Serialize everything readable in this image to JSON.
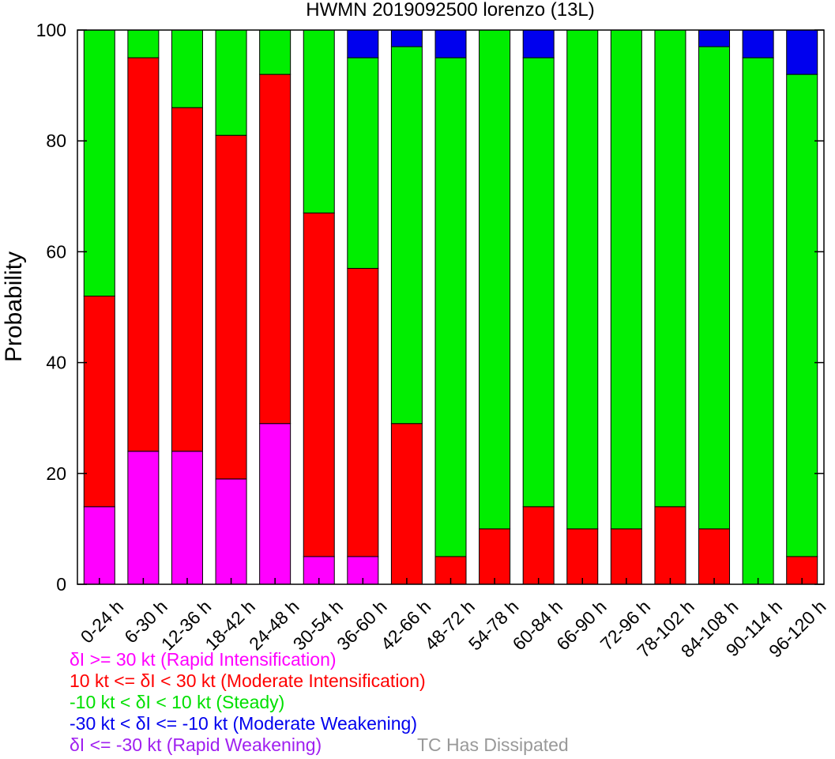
{
  "chart_data": {
    "type": "bar",
    "stacked": true,
    "title": "HWMN 2019092500 lorenzo (13L)",
    "xlabel": "",
    "ylabel": "Probability",
    "ylim": [
      0,
      100
    ],
    "yticks": [
      0,
      20,
      40,
      60,
      80,
      100
    ],
    "grid": false,
    "categories": [
      "0-24 h",
      "6-30 h",
      "12-36 h",
      "18-42 h",
      "24-48 h",
      "30-54 h",
      "36-60 h",
      "42-66 h",
      "48-72 h",
      "54-78 h",
      "60-84 h",
      "66-90 h",
      "72-96 h",
      "78-102 h",
      "84-108 h",
      "90-114 h",
      "96-120 h"
    ],
    "series": [
      {
        "name": "δI >= 30 kt (Rapid Intensification)",
        "color": "#ff00ff",
        "values": [
          14,
          24,
          24,
          19,
          29,
          5,
          5,
          0,
          0,
          0,
          0,
          0,
          0,
          0,
          0,
          0,
          0
        ]
      },
      {
        "name": "10 kt <= δI < 30 kt (Moderate Intensification)",
        "color": "#ff0000",
        "values": [
          38,
          71,
          62,
          62,
          63,
          62,
          52,
          29,
          5,
          10,
          14,
          10,
          10,
          14,
          10,
          0,
          5
        ]
      },
      {
        "name": "-10 kt < δI < 10 kt (Steady)",
        "color": "#00ee00",
        "values": [
          48,
          5,
          14,
          19,
          8,
          33,
          38,
          68,
          90,
          90,
          81,
          90,
          90,
          86,
          87,
          95,
          87
        ]
      },
      {
        "name": "-30 kt < δI <= -10 kt (Moderate Weakening)",
        "color": "#0000ee",
        "values": [
          0,
          0,
          0,
          0,
          0,
          0,
          5,
          3,
          5,
          0,
          5,
          0,
          0,
          0,
          3,
          5,
          8
        ]
      },
      {
        "name": "δI <= -30 kt (Rapid Weakening)",
        "color": "#a020f0",
        "values": [
          0,
          0,
          0,
          0,
          0,
          0,
          0,
          0,
          0,
          0,
          0,
          0,
          0,
          0,
          0,
          0,
          0
        ]
      }
    ],
    "extra_legend": {
      "label": "TC Has Dissipated",
      "color": "#999999"
    }
  }
}
